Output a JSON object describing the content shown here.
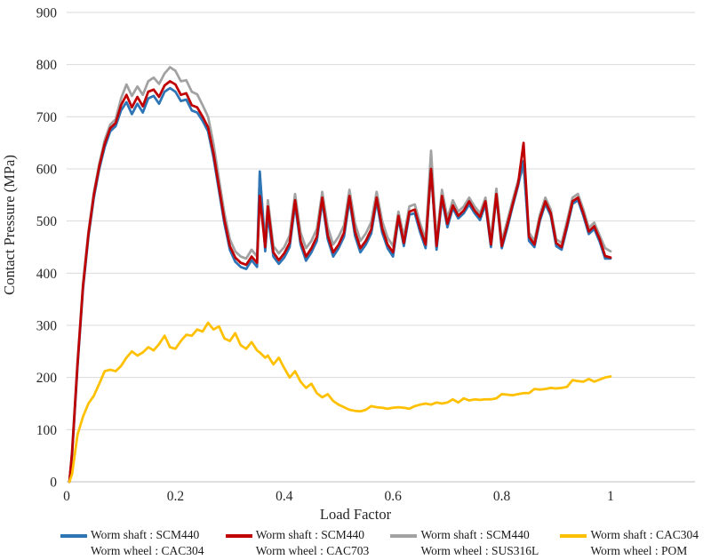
{
  "chart_data": {
    "type": "line",
    "title": "",
    "xlabel": "Load Factor",
    "ylabel": "Contact Pressure (MPa)",
    "xlim": [
      0,
      1.15
    ],
    "ylim": [
      0,
      900
    ],
    "xticks": [
      0,
      0.2,
      0.4,
      0.6,
      0.8,
      1
    ],
    "yticks": [
      0,
      100,
      200,
      300,
      400,
      500,
      600,
      700,
      800,
      900
    ],
    "grid": "horizontal",
    "legend_position": "bottom",
    "colors": {
      "grid": "#d9d9d9",
      "axis": "#bfbfbf",
      "text": "#262626"
    },
    "draw_order": [
      2,
      0,
      1,
      3
    ],
    "x": [
      0.005,
      0.01,
      0.02,
      0.03,
      0.04,
      0.05,
      0.06,
      0.07,
      0.08,
      0.09,
      0.1,
      0.11,
      0.12,
      0.13,
      0.14,
      0.15,
      0.16,
      0.17,
      0.18,
      0.19,
      0.2,
      0.21,
      0.22,
      0.23,
      0.24,
      0.25,
      0.26,
      0.27,
      0.28,
      0.29,
      0.3,
      0.31,
      0.32,
      0.33,
      0.34,
      0.35,
      0.355,
      0.365,
      0.37,
      0.38,
      0.39,
      0.4,
      0.41,
      0.42,
      0.43,
      0.44,
      0.45,
      0.46,
      0.47,
      0.48,
      0.49,
      0.5,
      0.51,
      0.52,
      0.53,
      0.54,
      0.55,
      0.56,
      0.57,
      0.58,
      0.59,
      0.6,
      0.61,
      0.62,
      0.63,
      0.64,
      0.65,
      0.66,
      0.67,
      0.68,
      0.69,
      0.7,
      0.71,
      0.72,
      0.73,
      0.74,
      0.75,
      0.76,
      0.77,
      0.78,
      0.79,
      0.8,
      0.81,
      0.82,
      0.83,
      0.84,
      0.85,
      0.86,
      0.87,
      0.88,
      0.89,
      0.9,
      0.91,
      0.92,
      0.93,
      0.94,
      0.95,
      0.96,
      0.97,
      0.98,
      0.99,
      1.0
    ],
    "series": [
      {
        "name": "Worm shaft : SCM440 / Worm wheel : CAC304",
        "legend": [
          "Worm shaft : SCM440",
          "Worm wheel : CAC304"
        ],
        "color": "#2e75b6",
        "values": [
          0,
          52,
          220,
          370,
          470,
          545,
          600,
          642,
          672,
          682,
          712,
          728,
          705,
          725,
          708,
          735,
          740,
          725,
          748,
          755,
          748,
          730,
          733,
          712,
          708,
          692,
          672,
          622,
          558,
          495,
          445,
          422,
          412,
          408,
          425,
          412,
          595,
          442,
          512,
          432,
          418,
          430,
          450,
          532,
          455,
          424,
          440,
          462,
          538,
          465,
          432,
          448,
          470,
          540,
          472,
          440,
          455,
          476,
          538,
          478,
          448,
          432,
          505,
          452,
          512,
          515,
          478,
          448,
          598,
          445,
          542,
          488,
          525,
          505,
          515,
          532,
          515,
          502,
          532,
          450,
          548,
          448,
          486,
          528,
          568,
          615,
          462,
          450,
          500,
          533,
          510,
          452,
          445,
          487,
          533,
          540,
          510,
          475,
          485,
          460,
          428,
          428
        ]
      },
      {
        "name": "Worm shaft : SCM440 / Worm wheel : CAC703",
        "legend": [
          "Worm shaft : SCM440",
          "Worm wheel : CAC703"
        ],
        "color": "#c00000",
        "values": [
          0,
          55,
          225,
          375,
          475,
          550,
          605,
          648,
          678,
          688,
          722,
          742,
          718,
          738,
          720,
          748,
          752,
          738,
          760,
          768,
          762,
          742,
          745,
          722,
          718,
          700,
          680,
          630,
          565,
          502,
          452,
          430,
          420,
          416,
          432,
          420,
          548,
          450,
          528,
          440,
          425,
          438,
          458,
          540,
          462,
          432,
          448,
          470,
          545,
          472,
          440,
          455,
          478,
          548,
          480,
          448,
          462,
          484,
          545,
          486,
          455,
          440,
          510,
          458,
          518,
          522,
          485,
          455,
          600,
          452,
          548,
          495,
          530,
          510,
          520,
          538,
          520,
          508,
          538,
          455,
          552,
          452,
          492,
          532,
          572,
          650,
          470,
          455,
          505,
          538,
          515,
          458,
          450,
          492,
          538,
          545,
          515,
          480,
          490,
          465,
          433,
          430
        ]
      },
      {
        "name": "Worm shaft : SCM440 / Worm wheel : SUS316L",
        "legend": [
          "Worm shaft : SCM440",
          "Worm wheel : SUS316L"
        ],
        "color": "#a2a2a2",
        "values": [
          0,
          60,
          230,
          380,
          480,
          555,
          610,
          655,
          685,
          695,
          735,
          762,
          740,
          758,
          742,
          768,
          775,
          763,
          783,
          795,
          788,
          768,
          770,
          748,
          743,
          722,
          700,
          648,
          580,
          515,
          465,
          442,
          432,
          428,
          445,
          432,
          588,
          462,
          540,
          452,
          438,
          450,
          472,
          552,
          478,
          448,
          462,
          485,
          556,
          488,
          455,
          470,
          492,
          560,
          496,
          462,
          476,
          498,
          556,
          500,
          468,
          452,
          518,
          470,
          528,
          532,
          495,
          465,
          635,
          462,
          560,
          505,
          540,
          518,
          528,
          545,
          528,
          515,
          545,
          465,
          562,
          462,
          500,
          540,
          578,
          602,
          478,
          462,
          512,
          545,
          522,
          465,
          458,
          500,
          545,
          552,
          522,
          487,
          497,
          472,
          448,
          442
        ]
      },
      {
        "name": "Worm shaft : CAC304 / Worm wheel : POM",
        "legend": [
          "Worm shaft : CAC304",
          "Worm wheel : POM"
        ],
        "color": "#ffc000",
        "values": [
          0,
          15,
          90,
          125,
          150,
          165,
          188,
          212,
          215,
          212,
          222,
          238,
          250,
          242,
          248,
          258,
          252,
          264,
          280,
          258,
          255,
          270,
          282,
          280,
          292,
          288,
          305,
          292,
          298,
          275,
          270,
          285,
          262,
          255,
          268,
          252,
          248,
          238,
          242,
          225,
          238,
          218,
          200,
          212,
          192,
          180,
          188,
          170,
          162,
          168,
          155,
          148,
          143,
          138,
          136,
          135,
          138,
          145,
          143,
          142,
          140,
          142,
          143,
          142,
          140,
          145,
          148,
          150,
          148,
          152,
          150,
          152,
          158,
          152,
          160,
          156,
          158,
          157,
          158,
          158,
          160,
          168,
          167,
          166,
          168,
          170,
          170,
          178,
          177,
          178,
          180,
          179,
          180,
          182,
          195,
          193,
          192,
          197,
          192,
          196,
          200,
          202
        ]
      }
    ]
  }
}
